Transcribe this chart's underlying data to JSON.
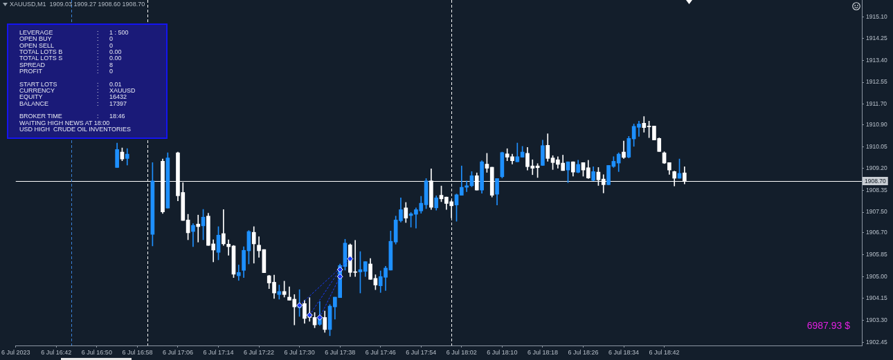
{
  "chart_data": {
    "type": "candlestick",
    "title": "XAUUSD,M1  1909.03 1909.27 1908.60 1908.70",
    "x": [
      "2023-07-06T16:54",
      "2023-07-06T16:55",
      "2023-07-06T16:56",
      "2023-07-06T17:01",
      "2023-07-06T17:03",
      "2023-07-06T17:04",
      "2023-07-06T17:06",
      "2023-07-06T17:07",
      "2023-07-06T17:08",
      "2023-07-06T17:09",
      "2023-07-06T17:10",
      "2023-07-06T17:11",
      "2023-07-06T17:12",
      "2023-07-06T17:13",
      "2023-07-06T17:14",
      "2023-07-06T17:15",
      "2023-07-06T17:16",
      "2023-07-06T17:17",
      "2023-07-06T17:18",
      "2023-07-06T17:19",
      "2023-07-06T17:20",
      "2023-07-06T17:21",
      "2023-07-06T17:22",
      "2023-07-06T17:23",
      "2023-07-06T17:24",
      "2023-07-06T17:25",
      "2023-07-06T17:26",
      "2023-07-06T17:27",
      "2023-07-06T17:28",
      "2023-07-06T17:29",
      "2023-07-06T17:30",
      "2023-07-06T17:31",
      "2023-07-06T17:32",
      "2023-07-06T17:33",
      "2023-07-06T17:34",
      "2023-07-06T17:35",
      "2023-07-06T17:36",
      "2023-07-06T17:37",
      "2023-07-06T17:38",
      "2023-07-06T17:39",
      "2023-07-06T17:40",
      "2023-07-06T17:41",
      "2023-07-06T17:42",
      "2023-07-06T17:43",
      "2023-07-06T17:44",
      "2023-07-06T17:45",
      "2023-07-06T17:46",
      "2023-07-06T17:47",
      "2023-07-06T17:48",
      "2023-07-06T17:49",
      "2023-07-06T17:50",
      "2023-07-06T17:51",
      "2023-07-06T17:52",
      "2023-07-06T17:53",
      "2023-07-06T17:54",
      "2023-07-06T17:55",
      "2023-07-06T17:56",
      "2023-07-06T17:57",
      "2023-07-06T17:58",
      "2023-07-06T17:59",
      "2023-07-06T18:00",
      "2023-07-06T18:01",
      "2023-07-06T18:02",
      "2023-07-06T18:03",
      "2023-07-06T18:04",
      "2023-07-06T18:05",
      "2023-07-06T18:06",
      "2023-07-06T18:07",
      "2023-07-06T18:08",
      "2023-07-06T18:09",
      "2023-07-06T18:10",
      "2023-07-06T18:11",
      "2023-07-06T18:12",
      "2023-07-06T18:13",
      "2023-07-06T18:14",
      "2023-07-06T18:15",
      "2023-07-06T18:16",
      "2023-07-06T18:17",
      "2023-07-06T18:18",
      "2023-07-06T18:19",
      "2023-07-06T18:20",
      "2023-07-06T18:21",
      "2023-07-06T18:22",
      "2023-07-06T18:23",
      "2023-07-06T18:24",
      "2023-07-06T18:25",
      "2023-07-06T18:26",
      "2023-07-06T18:27",
      "2023-07-06T18:28",
      "2023-07-06T18:29",
      "2023-07-06T18:30",
      "2023-07-06T18:31",
      "2023-07-06T18:32",
      "2023-07-06T18:33",
      "2023-07-06T18:34",
      "2023-07-06T18:35",
      "2023-07-06T18:36",
      "2023-07-06T18:37",
      "2023-07-06T18:38",
      "2023-07-06T18:39",
      "2023-07-06T18:40",
      "2023-07-06T18:41",
      "2023-07-06T18:42",
      "2023-07-06T18:43",
      "2023-07-06T18:44",
      "2023-07-06T18:45",
      "2023-07-06T18:46"
    ],
    "ohlc": [
      [
        1909.24,
        1910.19,
        1909.24,
        1909.94
      ],
      [
        1909.84,
        1910.0,
        1909.5,
        1909.57
      ],
      [
        1909.59,
        1909.97,
        1909.33,
        1909.76
      ],
      [
        1906.64,
        1909.43,
        1906.19,
        1908.72
      ],
      [
        1909.48,
        1909.57,
        1907.45,
        1907.51
      ],
      [
        1907.66,
        1909.81,
        1907.66,
        1909.61
      ],
      [
        1909.81,
        1909.84,
        1907.94,
        1908.14
      ],
      [
        1908.27,
        1908.65,
        1907.18,
        1907.18
      ],
      [
        1907.2,
        1907.42,
        1906.43,
        1906.7
      ],
      [
        1906.75,
        1907.06,
        1906.16,
        1906.99
      ],
      [
        1907.04,
        1907.39,
        1906.34,
        1906.94
      ],
      [
        1906.97,
        1907.61,
        1906.43,
        1907.31
      ],
      [
        1907.35,
        1907.46,
        1906.21,
        1906.21
      ],
      [
        1906.27,
        1906.43,
        1905.57,
        1906.03
      ],
      [
        1905.94,
        1906.94,
        1905.65,
        1906.61
      ],
      [
        1906.67,
        1907.6,
        1906.21,
        1906.27
      ],
      [
        1906.26,
        1906.43,
        1905.83,
        1906.16
      ],
      [
        1906.19,
        1906.21,
        1904.96,
        1905.09
      ],
      [
        1905.03,
        1905.45,
        1904.85,
        1905.16
      ],
      [
        1905.24,
        1906.16,
        1904.96,
        1906.02
      ],
      [
        1906.0,
        1906.79,
        1905.49,
        1906.75
      ],
      [
        1906.72,
        1906.94,
        1905.52,
        1906.27
      ],
      [
        1906.22,
        1906.55,
        1905.75,
        1906.0
      ],
      [
        1906.05,
        1906.05,
        1905.15,
        1905.15
      ],
      [
        1905.03,
        1905.05,
        1904.53,
        1904.75
      ],
      [
        1904.78,
        1905.06,
        1904.15,
        1904.36
      ],
      [
        1904.3,
        1904.67,
        1904.12,
        1904.42
      ],
      [
        1904.42,
        1904.82,
        1904.2,
        1904.3
      ],
      [
        1904.2,
        1904.6,
        1904.08,
        1904.08
      ],
      [
        1904.12,
        1904.3,
        1903.12,
        1903.82
      ],
      [
        1903.79,
        1904.49,
        1903.45,
        1903.9
      ],
      [
        1903.95,
        1904.08,
        1903.18,
        1903.37
      ],
      [
        1903.42,
        1904.18,
        1903.26,
        1903.41
      ],
      [
        1903.41,
        1903.6,
        1903.01,
        1903.12
      ],
      [
        1903.14,
        1904.03,
        1903.1,
        1903.41
      ],
      [
        1903.41,
        1903.66,
        1902.83,
        1902.94
      ],
      [
        1902.94,
        1903.91,
        1902.7,
        1903.85
      ],
      [
        1903.82,
        1904.2,
        1903.34,
        1904.2
      ],
      [
        1904.18,
        1905.49,
        1904.18,
        1905.43
      ],
      [
        1905.39,
        1906.45,
        1905.25,
        1906.3
      ],
      [
        1906.23,
        1906.27,
        1905.0,
        1905.16
      ],
      [
        1905.19,
        1906.41,
        1905.0,
        1905.16
      ],
      [
        1905.18,
        1905.97,
        1904.36,
        1905.27
      ],
      [
        1905.2,
        1905.58,
        1905.0,
        1905.58
      ],
      [
        1905.49,
        1905.7,
        1904.89,
        1904.89
      ],
      [
        1904.93,
        1905.07,
        1904.49,
        1904.67
      ],
      [
        1904.64,
        1905.22,
        1904.38,
        1905.0
      ],
      [
        1904.97,
        1905.4,
        1904.46,
        1905.33
      ],
      [
        1905.25,
        1906.77,
        1905.25,
        1906.37
      ],
      [
        1906.34,
        1907.35,
        1906.26,
        1907.2
      ],
      [
        1907.17,
        1908.06,
        1907.12,
        1907.6
      ],
      [
        1907.67,
        1907.88,
        1907.1,
        1907.27
      ],
      [
        1907.37,
        1907.49,
        1906.92,
        1907.44
      ],
      [
        1907.42,
        1907.67,
        1906.88,
        1907.6
      ],
      [
        1907.55,
        1908.12,
        1907.46,
        1907.85
      ],
      [
        1907.79,
        1908.81,
        1907.64,
        1908.72
      ],
      [
        1908.72,
        1909.19,
        1907.61,
        1907.69
      ],
      [
        1907.67,
        1908.14,
        1907.58,
        1908.06
      ],
      [
        1908.16,
        1908.52,
        1907.91,
        1908.02
      ],
      [
        1908.09,
        1908.09,
        1907.61,
        1907.84
      ],
      [
        1907.91,
        1907.96,
        1907.28,
        1907.75
      ],
      [
        1907.78,
        1908.21,
        1907.15,
        1908.18
      ],
      [
        1908.16,
        1909.3,
        1908.16,
        1908.47
      ],
      [
        1908.47,
        1908.72,
        1908.3,
        1908.53
      ],
      [
        1908.53,
        1909.08,
        1908.49,
        1908.92
      ],
      [
        1908.92,
        1909.03,
        1908.36,
        1908.36
      ],
      [
        1908.36,
        1909.5,
        1908.24,
        1909.46
      ],
      [
        1909.37,
        1909.79,
        1909.05,
        1909.21
      ],
      [
        1909.25,
        1909.25,
        1908.09,
        1908.16
      ],
      [
        1908.2,
        1908.81,
        1907.78,
        1908.81
      ],
      [
        1908.88,
        1909.84,
        1908.83,
        1909.82
      ],
      [
        1909.77,
        1909.97,
        1909.5,
        1909.64
      ],
      [
        1909.66,
        1909.76,
        1909.37,
        1909.5
      ],
      [
        1909.46,
        1910.19,
        1909.46,
        1909.66
      ],
      [
        1909.64,
        1910.06,
        1909.64,
        1909.84
      ],
      [
        1909.79,
        1910.02,
        1909.14,
        1909.27
      ],
      [
        1909.3,
        1909.54,
        1908.96,
        1909.21
      ],
      [
        1909.3,
        1909.39,
        1908.85,
        1909.23
      ],
      [
        1909.32,
        1910.3,
        1909.32,
        1910.09
      ],
      [
        1910.1,
        1910.55,
        1909.48,
        1909.59
      ],
      [
        1909.61,
        1909.7,
        1909.16,
        1909.43
      ],
      [
        1909.54,
        1909.66,
        1909.21,
        1909.36
      ],
      [
        1909.41,
        1909.72,
        1909.12,
        1909.12
      ],
      [
        1909.14,
        1909.46,
        1908.65,
        1909.46
      ],
      [
        1909.46,
        1909.46,
        1908.9,
        1909.06
      ],
      [
        1909.05,
        1909.52,
        1909.03,
        1909.36
      ],
      [
        1909.43,
        1909.43,
        1908.9,
        1909.14
      ],
      [
        1909.23,
        1909.52,
        1908.81,
        1908.83
      ],
      [
        1908.74,
        1909.27,
        1908.72,
        1909.08
      ],
      [
        1909.06,
        1909.24,
        1908.54,
        1908.76
      ],
      [
        1908.79,
        1908.96,
        1908.25,
        1908.57
      ],
      [
        1908.57,
        1909.32,
        1908.57,
        1909.32
      ],
      [
        1909.28,
        1909.66,
        1909.24,
        1909.48
      ],
      [
        1909.41,
        1909.81,
        1909.08,
        1909.76
      ],
      [
        1909.84,
        1910.27,
        1909.59,
        1909.63
      ],
      [
        1909.64,
        1910.45,
        1909.61,
        1910.37
      ],
      [
        1910.35,
        1910.93,
        1910.06,
        1910.84
      ],
      [
        1910.8,
        1911.04,
        1910.45,
        1910.93
      ],
      [
        1910.96,
        1911.22,
        1910.61,
        1910.79
      ],
      [
        1910.85,
        1911.04,
        1910.4,
        1910.82
      ],
      [
        1910.85,
        1910.85,
        1910.31,
        1910.31
      ],
      [
        1910.37,
        1910.39,
        1909.86,
        1909.86
      ],
      [
        1909.81,
        1909.85,
        1909.39,
        1909.41
      ],
      [
        1909.43,
        1909.43,
        1908.97,
        1909.14
      ],
      [
        1909.08,
        1909.1,
        1908.52,
        1908.82
      ],
      [
        1908.82,
        1909.57,
        1908.82,
        1909.01
      ],
      [
        1909.03,
        1909.27,
        1908.6,
        1908.7
      ]
    ],
    "colors": [
      "#1e90ff",
      "#ffffff",
      "#1e90ff",
      "#1e90ff",
      "#ffffff",
      "#1e90ff",
      "#ffffff",
      "#ffffff",
      "#ffffff",
      "#1e90ff",
      "#ffffff",
      "#1e90ff",
      "#ffffff",
      "#ffffff",
      "#1e90ff",
      "#ffffff",
      "#ffffff",
      "#ffffff",
      "#1e90ff",
      "#1e90ff",
      "#1e90ff",
      "#ffffff",
      "#ffffff",
      "#ffffff",
      "#ffffff",
      "#ffffff",
      "#1e90ff",
      "#ffffff",
      "#ffffff",
      "#ffffff",
      "#1e90ff",
      "#ffffff",
      "#ffffff",
      "#ffffff",
      "#1e90ff",
      "#ffffff",
      "#1e90ff",
      "#1e90ff",
      "#1e90ff",
      "#1e90ff",
      "#ffffff",
      "#ffffff",
      "#1e90ff",
      "#1e90ff",
      "#ffffff",
      "#ffffff",
      "#1e90ff",
      "#1e90ff",
      "#1e90ff",
      "#1e90ff",
      "#1e90ff",
      "#ffffff",
      "#1e90ff",
      "#1e90ff",
      "#1e90ff",
      "#1e90ff",
      "#ffffff",
      "#1e90ff",
      "#ffffff",
      "#ffffff",
      "#ffffff",
      "#1e90ff",
      "#1e90ff",
      "#1e90ff",
      "#1e90ff",
      "#ffffff",
      "#1e90ff",
      "#ffffff",
      "#ffffff",
      "#1e90ff",
      "#1e90ff",
      "#ffffff",
      "#ffffff",
      "#1e90ff",
      "#1e90ff",
      "#ffffff",
      "#ffffff",
      "#ffffff",
      "#1e90ff",
      "#ffffff",
      "#ffffff",
      "#ffffff",
      "#ffffff",
      "#1e90ff",
      "#ffffff",
      "#1e90ff",
      "#ffffff",
      "#ffffff",
      "#1e90ff",
      "#ffffff",
      "#ffffff",
      "#1e90ff",
      "#1e90ff",
      "#1e90ff",
      "#ffffff",
      "#1e90ff",
      "#1e90ff",
      "#1e90ff",
      "#ffffff",
      "#ffffff",
      "#ffffff",
      "#ffffff",
      "#ffffff",
      "#ffffff",
      "#ffffff",
      "#1e90ff",
      "#ffffff"
    ],
    "series": [
      {
        "type": "line",
        "color": "#1a3cff",
        "x": [
          "2023-07-06T17:30",
          "2023-07-06T17:40"
        ],
        "values": [
          1903.88,
          1905.69
        ]
      },
      {
        "type": "line",
        "color": "#1a3cff",
        "x": [
          "2023-07-06T17:32",
          "2023-07-06T17:38"
        ],
        "values": [
          1903.5,
          1905.27
        ]
      },
      {
        "type": "line",
        "color": "#1a3cff",
        "x": [
          "2023-07-06T17:34",
          "2023-07-06T17:38"
        ],
        "values": [
          1903.41,
          1905.0
        ]
      }
    ],
    "marker": "diamond",
    "line_style": "dotted",
    "xlim": [
      "2023-07-06T16:34",
      "2023-07-06T19:21"
    ],
    "xticks": [
      {
        "value": "2023-07-06T16:34",
        "label": "6 Jul 2023"
      },
      {
        "value": "2023-07-06T16:42",
        "label": "6 Jul 16:42"
      },
      {
        "value": "2023-07-06T16:50",
        "label": "6 Jul 16:50"
      },
      {
        "value": "2023-07-06T16:58",
        "label": "6 Jul 16:58"
      },
      {
        "value": "2023-07-06T17:06",
        "label": "6 Jul 17:06"
      },
      {
        "value": "2023-07-06T17:14",
        "label": "6 Jul 17:14"
      },
      {
        "value": "2023-07-06T17:22",
        "label": "6 Jul 17:22"
      },
      {
        "value": "2023-07-06T17:30",
        "label": "6 Jul 17:30"
      },
      {
        "value": "2023-07-06T17:38",
        "label": "6 Jul 17:38"
      },
      {
        "value": "2023-07-06T17:46",
        "label": "6 Jul 17:46"
      },
      {
        "value": "2023-07-06T17:54",
        "label": "6 Jul 17:54"
      },
      {
        "value": "2023-07-06T18:02",
        "label": "6 Jul 18:02"
      },
      {
        "value": "2023-07-06T18:10",
        "label": "6 Jul 18:10"
      },
      {
        "value": "2023-07-06T18:18",
        "label": "6 Jul 18:18"
      },
      {
        "value": "2023-07-06T18:26",
        "label": "6 Jul 18:26"
      },
      {
        "value": "2023-07-06T18:34",
        "label": "6 Jul 18:34"
      },
      {
        "value": "2023-07-06T18:42",
        "label": "6 Jul 18:42"
      }
    ],
    "ylim": [
      1902.32,
      1915.75
    ],
    "yticks": [
      {
        "value": 1902.45,
        "label": "1902.45"
      },
      {
        "value": 1903.3,
        "label": "1903.30"
      },
      {
        "value": 1904.15,
        "label": "1904.15"
      },
      {
        "value": 1905,
        "label": "1905.00"
      },
      {
        "value": 1905.85,
        "label": "1905.85"
      },
      {
        "value": 1906.7,
        "label": "1906.70"
      },
      {
        "value": 1907.5,
        "label": "1907.50"
      },
      {
        "value": 1908.35,
        "label": "1908.35"
      },
      {
        "value": 1909.2,
        "label": "1909.20"
      },
      {
        "value": 1910.05,
        "label": "1910.05"
      },
      {
        "value": 1910.9,
        "label": "1910.90"
      },
      {
        "value": 1911.7,
        "label": "1911.70"
      },
      {
        "value": 1912.55,
        "label": "1912.55"
      },
      {
        "value": 1913.4,
        "label": "1913.40"
      },
      {
        "value": 1914.25,
        "label": "1914.25"
      },
      {
        "value": 1915.1,
        "label": "1915.10"
      }
    ],
    "ref_lines": [
      {
        "axis": "y",
        "value": 1908.7,
        "label": "1908.70",
        "color": "#ffffff"
      },
      {
        "axis": "x",
        "value": "2023-07-06T16:45",
        "color": "#3a82d8",
        "line_style": "dashed"
      },
      {
        "axis": "x",
        "value": "2023-07-06T17:00",
        "color": "#ffffff",
        "line_style": "dashed"
      },
      {
        "axis": "x",
        "value": "2023-07-06T18:00",
        "color": "#ffffff",
        "line_style": "dashed"
      }
    ],
    "annotations": [
      "LEVERAGE : 1 : 500",
      "OPEN BUY : 0",
      "OPEN SELL : 0",
      "TOTAL LOTS B : 0.00",
      "TOTAL LOTS S : 0.00",
      "SPREAD : 8",
      "PROFIT : 0",
      "START LOTS : 0.01",
      "CURRENCY : XAUUSD",
      "EQUITY : 16432",
      "BALANCE : 17397",
      "BROKER TIME : 18:46",
      "WAITING HIGH NEWS AT 18:00",
      "USD HIGH  CRUDE OIL INVENTORIES",
      "6987.93 $"
    ]
  }
}
